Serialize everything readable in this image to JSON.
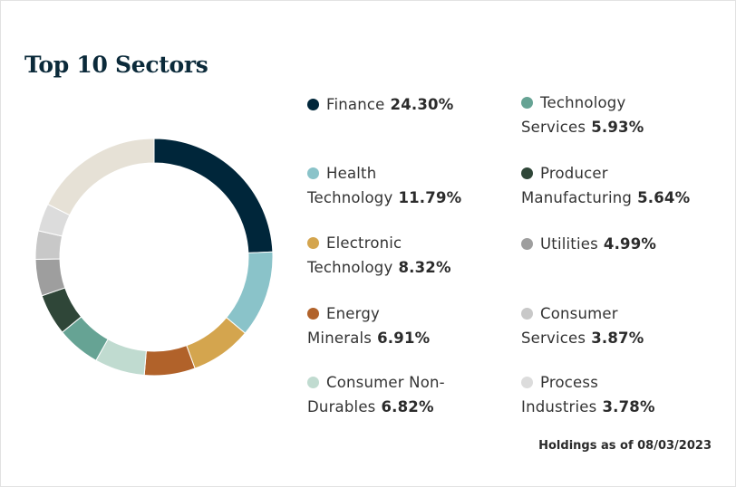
{
  "chart_data": {
    "type": "pie",
    "variant": "donut",
    "title": "Top 10 Sectors",
    "categories": [
      "Finance",
      "Health Technology",
      "Electronic Technology",
      "Energy Minerals",
      "Consumer Non-Durables",
      "Technology Services",
      "Producer Manufacturing",
      "Utilities",
      "Consumer Services",
      "Process Industries"
    ],
    "values": [
      24.3,
      11.79,
      8.32,
      6.91,
      6.82,
      5.93,
      5.64,
      4.99,
      3.87,
      3.78
    ],
    "colors": [
      "#00263a",
      "#8ac3c9",
      "#d4a54e",
      "#b1622a",
      "#c0dbd0",
      "#66a394",
      "#2f4638",
      "#9e9e9e",
      "#c8c8c8",
      "#dcdcdc"
    ],
    "other_color": "#e6e1d6",
    "value_format": "percent",
    "legend_position": "right"
  },
  "legend": [
    {
      "label": "Finance",
      "pct": "24.30%"
    },
    {
      "label": "Health Technology",
      "pct": "11.79%"
    },
    {
      "label": "Electronic Technology",
      "pct": "8.32%"
    },
    {
      "label": "Energy Minerals",
      "pct": "6.91%"
    },
    {
      "label": "Consumer Non-Durables",
      "pct": "6.82%"
    },
    {
      "label": "Technology Services",
      "pct": "5.93%"
    },
    {
      "label": "Producer Manufacturing",
      "pct": "5.64%"
    },
    {
      "label": "Utilities",
      "pct": "4.99%"
    },
    {
      "label": "Consumer Services",
      "pct": "3.87%"
    },
    {
      "label": "Process Industries",
      "pct": "3.78%"
    }
  ],
  "footnote": "Holdings as of 08/03/2023"
}
